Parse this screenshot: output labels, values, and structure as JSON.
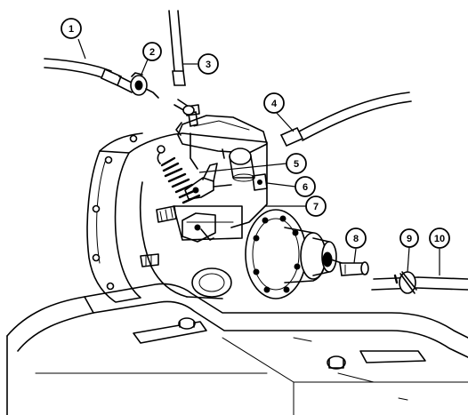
{
  "callouts": [
    {
      "id": "callout-1",
      "label": "1"
    },
    {
      "id": "callout-2",
      "label": "2"
    },
    {
      "id": "callout-3",
      "label": "3"
    },
    {
      "id": "callout-4",
      "label": "4"
    },
    {
      "id": "callout-5",
      "label": "5"
    },
    {
      "id": "callout-6",
      "label": "6"
    },
    {
      "id": "callout-7",
      "label": "7"
    },
    {
      "id": "callout-8",
      "label": "8"
    },
    {
      "id": "callout-9",
      "label": "9"
    },
    {
      "id": "callout-10",
      "label": "10"
    }
  ]
}
